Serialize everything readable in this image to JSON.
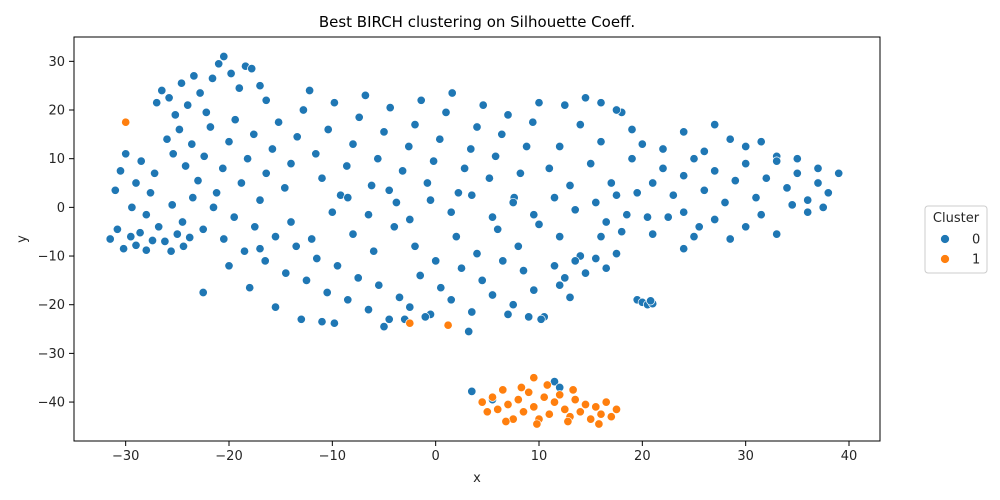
{
  "chart_data": {
    "type": "scatter",
    "title": "Best BIRCH clustering on Silhouette Coeff.",
    "xlabel": "x",
    "ylabel": "y",
    "xlim": [
      -35,
      43
    ],
    "ylim": [
      -48,
      35
    ],
    "xticks": [
      -30,
      -20,
      -10,
      0,
      10,
      20,
      30,
      40
    ],
    "yticks": [
      -40,
      -30,
      -20,
      -10,
      0,
      10,
      20,
      30
    ],
    "grid": false,
    "legend": {
      "title": "Cluster",
      "placement": "right",
      "entries": [
        {
          "label": "0",
          "color": "#1f77b4"
        },
        {
          "label": "1",
          "color": "#ff7f0e"
        }
      ]
    },
    "series": [
      {
        "name": "0",
        "color": "#1f77b4",
        "points": [
          [
            -31.5,
            -6.5
          ],
          [
            -30.8,
            -4.5
          ],
          [
            -30.2,
            -8.5
          ],
          [
            -29.5,
            -6.0
          ],
          [
            -29.0,
            -7.8
          ],
          [
            -28.6,
            -5.2
          ],
          [
            -28.0,
            -8.8
          ],
          [
            -27.4,
            -6.8
          ],
          [
            -26.8,
            -4.0
          ],
          [
            -26.2,
            -7.0
          ],
          [
            -25.6,
            -9.0
          ],
          [
            -25.0,
            -5.5
          ],
          [
            -24.4,
            -8.0
          ],
          [
            -23.8,
            -6.2
          ],
          [
            -31.0,
            3.5
          ],
          [
            -30.5,
            7.5
          ],
          [
            -30.0,
            11.0
          ],
          [
            -29.4,
            0.0
          ],
          [
            -29.0,
            5.0
          ],
          [
            -28.5,
            9.5
          ],
          [
            -28.0,
            -1.5
          ],
          [
            -27.6,
            3.0
          ],
          [
            -27.2,
            7.0
          ],
          [
            -27.0,
            21.5
          ],
          [
            -26.5,
            24.0
          ],
          [
            -25.8,
            22.5
          ],
          [
            -25.2,
            19.0
          ],
          [
            -24.6,
            25.5
          ],
          [
            -24.0,
            21.0
          ],
          [
            -23.4,
            27.0
          ],
          [
            -22.8,
            23.5
          ],
          [
            -22.2,
            19.5
          ],
          [
            -21.6,
            26.5
          ],
          [
            -21.0,
            29.5
          ],
          [
            -20.5,
            31.0
          ],
          [
            -19.8,
            27.5
          ],
          [
            -19.0,
            24.5
          ],
          [
            -18.4,
            29.0
          ],
          [
            -17.8,
            28.5
          ],
          [
            -17.0,
            25.0
          ],
          [
            -16.4,
            22.0
          ],
          [
            -26.0,
            14.0
          ],
          [
            -25.4,
            11.0
          ],
          [
            -24.8,
            16.0
          ],
          [
            -24.2,
            8.5
          ],
          [
            -23.6,
            13.0
          ],
          [
            -23.0,
            5.5
          ],
          [
            -22.4,
            10.5
          ],
          [
            -21.8,
            16.5
          ],
          [
            -21.2,
            3.0
          ],
          [
            -20.6,
            8.0
          ],
          [
            -20.0,
            13.5
          ],
          [
            -19.4,
            18.0
          ],
          [
            -18.8,
            5.0
          ],
          [
            -18.2,
            10.0
          ],
          [
            -17.6,
            15.0
          ],
          [
            -17.0,
            1.5
          ],
          [
            -16.4,
            7.0
          ],
          [
            -15.8,
            12.0
          ],
          [
            -15.2,
            17.5
          ],
          [
            -14.6,
            4.0
          ],
          [
            -14.0,
            9.0
          ],
          [
            -13.4,
            14.5
          ],
          [
            -12.8,
            20.0
          ],
          [
            -12.2,
            24.0
          ],
          [
            -11.6,
            11.0
          ],
          [
            -11.0,
            6.0
          ],
          [
            -10.4,
            16.0
          ],
          [
            -9.8,
            21.5
          ],
          [
            -9.2,
            2.5
          ],
          [
            -8.6,
            8.5
          ],
          [
            -8.0,
            13.0
          ],
          [
            -7.4,
            18.5
          ],
          [
            -6.8,
            23.0
          ],
          [
            -6.2,
            4.5
          ],
          [
            -5.6,
            10.0
          ],
          [
            -5.0,
            15.5
          ],
          [
            -4.4,
            20.5
          ],
          [
            -3.8,
            1.0
          ],
          [
            -3.2,
            7.5
          ],
          [
            -2.6,
            12.5
          ],
          [
            -2.0,
            17.0
          ],
          [
            -1.4,
            22.0
          ],
          [
            -0.8,
            5.0
          ],
          [
            -0.2,
            9.5
          ],
          [
            0.4,
            14.0
          ],
          [
            1.0,
            19.5
          ],
          [
            1.6,
            23.5
          ],
          [
            2.2,
            3.0
          ],
          [
            2.8,
            8.0
          ],
          [
            3.4,
            12.0
          ],
          [
            4.0,
            16.5
          ],
          [
            4.6,
            21.0
          ],
          [
            5.2,
            6.0
          ],
          [
            5.8,
            10.5
          ],
          [
            6.4,
            15.0
          ],
          [
            7.0,
            19.0
          ],
          [
            7.6,
            2.0
          ],
          [
            8.2,
            7.0
          ],
          [
            8.8,
            12.5
          ],
          [
            9.4,
            17.5
          ],
          [
            10.0,
            21.5
          ],
          [
            -25.5,
            0.5
          ],
          [
            -24.5,
            -3.0
          ],
          [
            -23.5,
            2.0
          ],
          [
            -22.5,
            -4.5
          ],
          [
            -21.5,
            0.0
          ],
          [
            -20.5,
            -6.5
          ],
          [
            -19.5,
            -2.0
          ],
          [
            -18.5,
            -9.0
          ],
          [
            -17.5,
            -4.0
          ],
          [
            -16.5,
            -11.0
          ],
          [
            -15.5,
            -6.0
          ],
          [
            -14.5,
            -13.5
          ],
          [
            -13.5,
            -8.0
          ],
          [
            -12.5,
            -15.0
          ],
          [
            -11.5,
            -10.5
          ],
          [
            -10.5,
            -17.5
          ],
          [
            -9.5,
            -12.0
          ],
          [
            -8.5,
            -19.0
          ],
          [
            -7.5,
            -14.5
          ],
          [
            -6.5,
            -21.0
          ],
          [
            -5.5,
            -16.0
          ],
          [
            -4.5,
            -23.0
          ],
          [
            -3.5,
            -18.5
          ],
          [
            -2.5,
            -20.5
          ],
          [
            -1.5,
            -14.0
          ],
          [
            -0.5,
            -22.0
          ],
          [
            0.5,
            -16.5
          ],
          [
            1.5,
            -19.0
          ],
          [
            2.5,
            -12.5
          ],
          [
            3.5,
            -21.5
          ],
          [
            4.5,
            -15.0
          ],
          [
            5.5,
            -18.0
          ],
          [
            6.5,
            -11.0
          ],
          [
            7.5,
            -20.0
          ],
          [
            8.5,
            -13.0
          ],
          [
            9.5,
            -17.0
          ],
          [
            10.5,
            -22.5
          ],
          [
            -22.5,
            -17.5
          ],
          [
            -18.0,
            -16.5
          ],
          [
            -15.5,
            -20.5
          ],
          [
            -13.0,
            -23.0
          ],
          [
            -11.0,
            -23.5
          ],
          [
            -9.8,
            -23.8
          ],
          [
            -5.0,
            -24.5
          ],
          [
            -3.0,
            -23.0
          ],
          [
            -1.0,
            -22.5
          ],
          [
            3.2,
            -25.5
          ],
          [
            7.0,
            -22.0
          ],
          [
            9.0,
            -22.5
          ],
          [
            10.2,
            -23.0
          ],
          [
            -20.0,
            -12.0
          ],
          [
            -17.0,
            -8.5
          ],
          [
            -14.0,
            -3.0
          ],
          [
            -12.0,
            -6.5
          ],
          [
            -10.0,
            -1.0
          ],
          [
            -8.0,
            -5.5
          ],
          [
            -6.0,
            -9.0
          ],
          [
            -4.0,
            -4.0
          ],
          [
            -2.0,
            -8.0
          ],
          [
            0.0,
            -11.0
          ],
          [
            2.0,
            -6.0
          ],
          [
            4.0,
            -9.5
          ],
          [
            6.0,
            -4.5
          ],
          [
            8.0,
            -8.0
          ],
          [
            10.0,
            -3.5
          ],
          [
            12.0,
            -6.0
          ],
          [
            14.0,
            -10.0
          ],
          [
            -8.5,
            2.0
          ],
          [
            -6.5,
            -1.5
          ],
          [
            -4.5,
            3.5
          ],
          [
            -2.5,
            -2.5
          ],
          [
            -0.5,
            1.5
          ],
          [
            1.5,
            -1.0
          ],
          [
            3.5,
            2.5
          ],
          [
            5.5,
            -2.0
          ],
          [
            7.5,
            1.0
          ],
          [
            9.5,
            -1.5
          ],
          [
            11.5,
            2.0
          ],
          [
            13.5,
            -0.5
          ],
          [
            11.5,
            -12.0
          ],
          [
            12.5,
            -14.5
          ],
          [
            13.5,
            -11.0
          ],
          [
            14.5,
            -13.5
          ],
          [
            15.5,
            -10.5
          ],
          [
            16.5,
            -12.5
          ],
          [
            17.5,
            -9.5
          ],
          [
            12.0,
            -16.0
          ],
          [
            13.0,
            -18.5
          ],
          [
            11.0,
            8.0
          ],
          [
            12.0,
            12.5
          ],
          [
            13.0,
            4.5
          ],
          [
            14.0,
            17.0
          ],
          [
            15.0,
            9.0
          ],
          [
            16.0,
            13.5
          ],
          [
            17.0,
            5.0
          ],
          [
            18.0,
            19.5
          ],
          [
            19.0,
            10.0
          ],
          [
            12.5,
            21.0
          ],
          [
            14.5,
            22.5
          ],
          [
            16.0,
            21.5
          ],
          [
            17.5,
            20.0
          ],
          [
            19.0,
            16.0
          ],
          [
            20.0,
            13.0
          ],
          [
            15.5,
            1.0
          ],
          [
            16.5,
            -3.0
          ],
          [
            17.5,
            2.5
          ],
          [
            18.5,
            -1.5
          ],
          [
            19.5,
            3.0
          ],
          [
            20.5,
            -2.0
          ],
          [
            16.0,
            -6.0
          ],
          [
            18.0,
            -5.0
          ],
          [
            19.5,
            -19.0
          ],
          [
            20.0,
            -19.5
          ],
          [
            20.5,
            -20.0
          ],
          [
            21.0,
            -19.8
          ],
          [
            20.8,
            -19.2
          ],
          [
            21.0,
            5.0
          ],
          [
            22.0,
            8.0
          ],
          [
            23.0,
            2.5
          ],
          [
            24.0,
            6.5
          ],
          [
            25.0,
            10.0
          ],
          [
            26.0,
            3.5
          ],
          [
            27.0,
            7.5
          ],
          [
            28.0,
            1.0
          ],
          [
            29.0,
            5.5
          ],
          [
            30.0,
            9.0
          ],
          [
            31.0,
            2.0
          ],
          [
            32.0,
            6.0
          ],
          [
            33.0,
            10.5
          ],
          [
            34.0,
            4.0
          ],
          [
            35.0,
            7.0
          ],
          [
            36.0,
            1.5
          ],
          [
            37.0,
            5.0
          ],
          [
            38.0,
            3.0
          ],
          [
            39.0,
            7.0
          ],
          [
            22.5,
            -2.0
          ],
          [
            24.0,
            -1.0
          ],
          [
            25.5,
            -4.0
          ],
          [
            27.0,
            -2.5
          ],
          [
            28.5,
            -6.5
          ],
          [
            30.0,
            -4.0
          ],
          [
            31.5,
            -1.5
          ],
          [
            33.0,
            -5.5
          ],
          [
            34.5,
            0.5
          ],
          [
            36.0,
            -1.0
          ],
          [
            37.5,
            0.0
          ],
          [
            22.0,
            12.0
          ],
          [
            24.0,
            15.5
          ],
          [
            26.0,
            11.5
          ],
          [
            27.0,
            17.0
          ],
          [
            28.5,
            14.0
          ],
          [
            30.0,
            12.5
          ],
          [
            31.5,
            13.5
          ],
          [
            33.0,
            9.5
          ],
          [
            35.0,
            10.0
          ],
          [
            37.0,
            8.0
          ],
          [
            24.0,
            -8.5
          ],
          [
            21.0,
            -5.5
          ],
          [
            25.0,
            -6.0
          ],
          [
            3.5,
            -37.8
          ],
          [
            11.5,
            -35.8
          ],
          [
            5.5,
            -39.5
          ],
          [
            12.0,
            -37.0
          ]
        ]
      },
      {
        "name": "1",
        "color": "#ff7f0e",
        "points": [
          [
            -30.0,
            17.5
          ],
          [
            -2.5,
            -23.8
          ],
          [
            1.2,
            -24.2
          ],
          [
            9.5,
            -35.0
          ],
          [
            4.5,
            -40.0
          ],
          [
            5.0,
            -42.0
          ],
          [
            5.5,
            -39.0
          ],
          [
            6.0,
            -41.5
          ],
          [
            6.5,
            -37.5
          ],
          [
            7.0,
            -40.5
          ],
          [
            7.5,
            -43.5
          ],
          [
            8.0,
            -39.5
          ],
          [
            8.5,
            -42.0
          ],
          [
            9.0,
            -38.0
          ],
          [
            9.5,
            -41.0
          ],
          [
            10.0,
            -43.5
          ],
          [
            10.5,
            -39.0
          ],
          [
            11.0,
            -42.5
          ],
          [
            11.5,
            -40.0
          ],
          [
            12.0,
            -38.5
          ],
          [
            12.5,
            -41.5
          ],
          [
            13.0,
            -43.0
          ],
          [
            13.5,
            -39.5
          ],
          [
            14.0,
            -42.0
          ],
          [
            14.5,
            -40.5
          ],
          [
            15.0,
            -43.5
          ],
          [
            15.5,
            -41.0
          ],
          [
            16.0,
            -42.5
          ],
          [
            16.5,
            -40.0
          ],
          [
            17.0,
            -43.0
          ],
          [
            17.5,
            -41.5
          ],
          [
            6.8,
            -44.0
          ],
          [
            9.8,
            -44.5
          ],
          [
            12.8,
            -44.0
          ],
          [
            15.8,
            -44.5
          ],
          [
            8.3,
            -37.0
          ],
          [
            10.8,
            -36.5
          ],
          [
            13.3,
            -37.5
          ]
        ]
      }
    ]
  }
}
